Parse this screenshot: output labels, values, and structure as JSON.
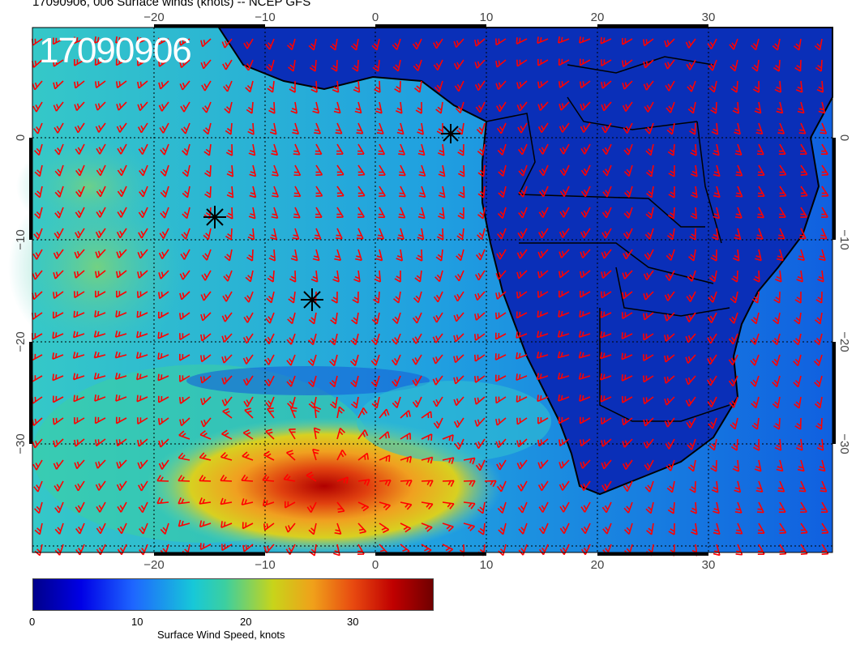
{
  "title": "17090906, 006 Surface winds (knots) -- NCEP GFS",
  "timestamp": "17090906",
  "map": {
    "lon_ticks": [
      "−20",
      "−10",
      "0",
      "10",
      "20",
      "30"
    ],
    "lat_ticks": [
      "0",
      "−10",
      "−20",
      "−30"
    ],
    "lon_range": [
      -30,
      40
    ],
    "lat_range": [
      -40,
      10
    ],
    "barb_color": "#ff0000"
  },
  "colorbar": {
    "title": "Surface Wind Speed, knots",
    "ticks": [
      "0",
      "10",
      "20",
      "30"
    ],
    "range": [
      0,
      37
    ]
  }
}
